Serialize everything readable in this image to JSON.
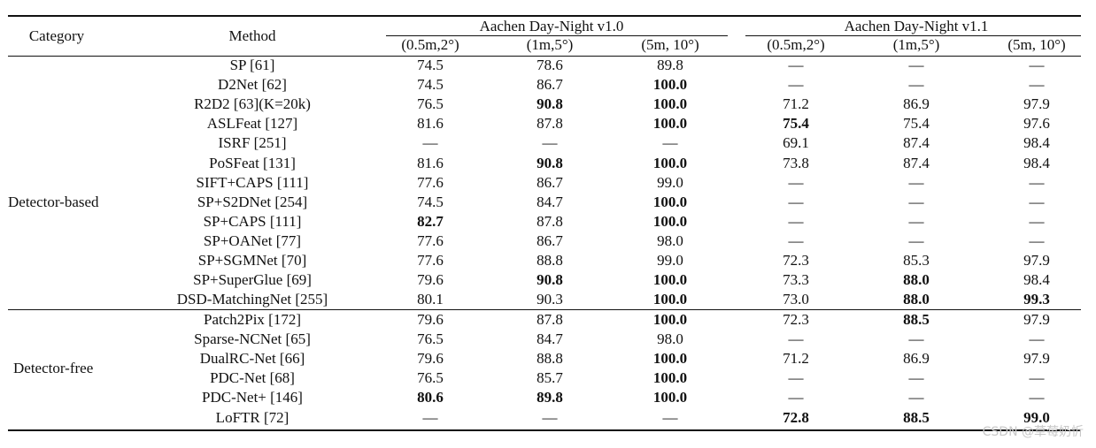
{
  "header": {
    "category": "Category",
    "method": "Method",
    "group1": "Aachen Day-Night v1.0",
    "group2": "Aachen Day-Night v1.1",
    "sub": [
      "(0.5m,2°)",
      "(1m,5°)",
      "(5m, 10°)",
      "(0.5m,2°)",
      "(1m,5°)",
      "(5m, 10°)"
    ]
  },
  "categories": [
    "Detector-based",
    "Detector-free"
  ],
  "rows": [
    {
      "method": "SP [61]",
      "v": [
        "74.5",
        "78.6",
        "89.8",
        "—",
        "—",
        "—"
      ],
      "bold": []
    },
    {
      "method": "D2Net [62]",
      "v": [
        "74.5",
        "86.7",
        "100.0",
        "—",
        "—",
        "—"
      ],
      "bold": [
        2
      ]
    },
    {
      "method": "R2D2 [63](K=20k)",
      "v": [
        "76.5",
        "90.8",
        "100.0",
        "71.2",
        "86.9",
        "97.9"
      ],
      "bold": [
        1,
        2
      ]
    },
    {
      "method": "ASLFeat [127]",
      "v": [
        "81.6",
        "87.8",
        "100.0",
        "75.4",
        "75.4",
        "97.6"
      ],
      "bold": [
        2,
        3
      ]
    },
    {
      "method": "ISRF [251]",
      "v": [
        "—",
        "—",
        "—",
        "69.1",
        "87.4",
        "98.4"
      ],
      "bold": []
    },
    {
      "method": "PoSFeat [131]",
      "v": [
        "81.6",
        "90.8",
        "100.0",
        "73.8",
        "87.4",
        "98.4"
      ],
      "bold": [
        1,
        2
      ]
    },
    {
      "method": "SIFT+CAPS [111]",
      "v": [
        "77.6",
        "86.7",
        "99.0",
        "—",
        "—",
        "—"
      ],
      "bold": []
    },
    {
      "method": "SP+S2DNet [254]",
      "v": [
        "74.5",
        "84.7",
        "100.0",
        "—",
        "—",
        "—"
      ],
      "bold": [
        2
      ]
    },
    {
      "method": "SP+CAPS [111]",
      "v": [
        "82.7",
        "87.8",
        "100.0",
        "—",
        "—",
        "—"
      ],
      "bold": [
        0,
        2
      ]
    },
    {
      "method": "SP+OANet [77]",
      "v": [
        "77.6",
        "86.7",
        "98.0",
        "—",
        "—",
        "—"
      ],
      "bold": []
    },
    {
      "method": "SP+SGMNet [70]",
      "v": [
        "77.6",
        "88.8",
        "99.0",
        "72.3",
        "85.3",
        "97.9"
      ],
      "bold": []
    },
    {
      "method": "SP+SuperGlue [69]",
      "v": [
        "79.6",
        "90.8",
        "100.0",
        "73.3",
        "88.0",
        "98.4"
      ],
      "bold": [
        1,
        2,
        4
      ]
    },
    {
      "method": "DSD-MatchingNet [255]",
      "v": [
        "80.1",
        "90.3",
        "100.0",
        "73.0",
        "88.0",
        "99.3"
      ],
      "bold": [
        2,
        4,
        5
      ]
    },
    {
      "method": "Patch2Pix [172]",
      "v": [
        "79.6",
        "87.8",
        "100.0",
        "72.3",
        "88.5",
        "97.9"
      ],
      "bold": [
        2,
        4
      ]
    },
    {
      "method": "Sparse-NCNet [65]",
      "v": [
        "76.5",
        "84.7",
        "98.0",
        "—",
        "—",
        "—"
      ],
      "bold": []
    },
    {
      "method": "DualRC-Net [66]",
      "v": [
        "79.6",
        "88.8",
        "100.0",
        "71.2",
        "86.9",
        "97.9"
      ],
      "bold": [
        2
      ]
    },
    {
      "method": "PDC-Net [68]",
      "v": [
        "76.5",
        "85.7",
        "100.0",
        "—",
        "—",
        "—"
      ],
      "bold": [
        2
      ]
    },
    {
      "method": "PDC-Net+ [146]",
      "v": [
        "80.6",
        "89.8",
        "100.0",
        "—",
        "—",
        "—"
      ],
      "bold": [
        0,
        1,
        2
      ]
    },
    {
      "method": "LoFTR [72]",
      "v": [
        "—",
        "—",
        "—",
        "72.8",
        "88.5",
        "99.0"
      ],
      "bold": [
        3,
        4,
        5
      ]
    }
  ],
  "watermark": "CSDN @草莓奶忻"
}
